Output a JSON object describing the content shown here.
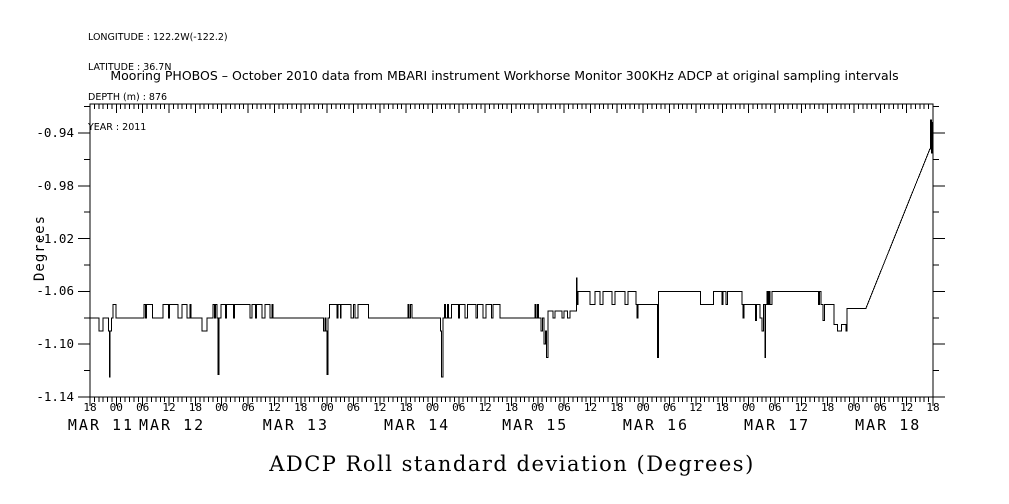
{
  "meta": {
    "longitude": "LONGITUDE : 122.2W(-122.2)",
    "latitude": "LATITUDE : 36.7N",
    "depth": "DEPTH (m) : 876",
    "year": "YEAR : 2011"
  },
  "title": "Mooring PHOBOS – October 2010 data from MBARI instrument Workhorse Monitor 300KHz ADCP at original sampling intervals",
  "footer_title": "ADCP Roll standard deviation (Degrees)",
  "colors": {
    "line": "#000000",
    "background": "#ffffff",
    "text": "#000000"
  },
  "chart_data": {
    "type": "line",
    "title": "Mooring PHOBOS – October 2010 data from MBARI instrument Workhorse Monitor 300KHz ADCP at original sampling intervals",
    "xlabel": "",
    "ylabel": "Degrees",
    "grid": false,
    "legend": "none",
    "ylim": [
      -1.14,
      -0.918
    ],
    "y_axis": {
      "major_values": [
        -0.94,
        -0.98,
        -1.02,
        -1.06,
        -1.1,
        -1.14
      ],
      "major_labels": [
        "-0.94",
        "-0.98",
        "-1.02",
        "-1.06",
        "-1.10",
        "-1.14"
      ],
      "minor_values": [
        -0.92,
        -0.96,
        -1.0,
        -1.04,
        -1.08,
        -1.12
      ]
    },
    "x_axis": {
      "start": "MAR 10 18:00",
      "end": "MAR 18 18:00",
      "total_hours": 192,
      "minor_step_hours": 1,
      "major_step_hours": 6,
      "hour_labels": [
        "18",
        "00",
        "06",
        "12",
        "18",
        "00",
        "06",
        "12",
        "18",
        "00",
        "06",
        "12",
        "18",
        "00",
        "06",
        "12",
        "18",
        "00",
        "06",
        "12",
        "18",
        "00",
        "06",
        "12",
        "18",
        "00",
        "06",
        "12",
        "18",
        "00",
        "06",
        "12",
        "18"
      ],
      "date_labels": [
        {
          "label": "MAR 11",
          "t": 2.5
        },
        {
          "label": "MAR 12",
          "t": 18.7
        },
        {
          "label": "MAR 13",
          "t": 46.9
        },
        {
          "label": "MAR 14",
          "t": 74.5
        },
        {
          "label": "MAR 15",
          "t": 101.4
        },
        {
          "label": "MAR 16",
          "t": 128.9
        },
        {
          "label": "MAR 17",
          "t": 156.5
        },
        {
          "label": "MAR 18",
          "t": 181.8
        }
      ]
    },
    "series": [
      {
        "name": "ADCP Roll standard deviation",
        "units": "Degrees",
        "interpolation": "step (hold), 'l' = linear segment",
        "points": [
          [
            0,
            -1.08
          ],
          [
            2.0,
            -1.09
          ],
          [
            3.0,
            -1.08
          ],
          [
            4.2,
            -1.09
          ],
          [
            4.4,
            -1.125
          ],
          [
            4.6,
            -1.09
          ],
          [
            4.9,
            -1.08
          ],
          [
            5.2,
            -1.07
          ],
          [
            5.9,
            -1.08
          ],
          [
            12.3,
            -1.07
          ],
          [
            12.6,
            -1.08
          ],
          [
            12.9,
            -1.07
          ],
          [
            14.2,
            -1.08
          ],
          [
            16.6,
            -1.07
          ],
          [
            17.9,
            -1.08
          ],
          [
            18.1,
            -1.07
          ],
          [
            20.0,
            -1.08
          ],
          [
            21.0,
            -1.07
          ],
          [
            22.1,
            -1.08
          ],
          [
            22.8,
            -1.07
          ],
          [
            23.0,
            -1.08
          ],
          [
            25.5,
            -1.09
          ],
          [
            26.6,
            -1.08
          ],
          [
            28.0,
            -1.07
          ],
          [
            28.3,
            -1.08
          ],
          [
            28.6,
            -1.07
          ],
          [
            28.9,
            -1.08
          ],
          [
            29.2,
            -1.123
          ],
          [
            29.4,
            -1.08
          ],
          [
            29.8,
            -1.07
          ],
          [
            30.9,
            -1.08
          ],
          [
            31.1,
            -1.07
          ],
          [
            32.7,
            -1.08
          ],
          [
            32.9,
            -1.07
          ],
          [
            36.4,
            -1.08
          ],
          [
            36.9,
            -1.07
          ],
          [
            37.7,
            -1.08
          ],
          [
            37.9,
            -1.07
          ],
          [
            39.2,
            -1.08
          ],
          [
            39.9,
            -1.07
          ],
          [
            41.0,
            -1.08
          ],
          [
            41.5,
            -1.07
          ],
          [
            41.7,
            -1.08
          ],
          [
            53.2,
            -1.09
          ],
          [
            53.5,
            -1.08
          ],
          [
            53.8,
            -1.09
          ],
          [
            54.0,
            -1.123
          ],
          [
            54.2,
            -1.08
          ],
          [
            54.5,
            -1.07
          ],
          [
            56.3,
            -1.08
          ],
          [
            56.5,
            -1.07
          ],
          [
            57.0,
            -1.08
          ],
          [
            57.2,
            -1.07
          ],
          [
            59.4,
            -1.08
          ],
          [
            60.0,
            -1.07
          ],
          [
            60.4,
            -1.08
          ],
          [
            61.0,
            -1.07
          ],
          [
            63.4,
            -1.08
          ],
          [
            72.4,
            -1.07
          ],
          [
            72.6,
            -1.08
          ],
          [
            73.0,
            -1.07
          ],
          [
            73.3,
            -1.08
          ],
          [
            79.8,
            -1.09
          ],
          [
            80.1,
            -1.125
          ],
          [
            80.4,
            -1.08
          ],
          [
            80.7,
            -1.07
          ],
          [
            81.0,
            -1.08
          ],
          [
            81.4,
            -1.07
          ],
          [
            81.7,
            -1.08
          ],
          [
            82.3,
            -1.07
          ],
          [
            83.9,
            -1.08
          ],
          [
            84.2,
            -1.07
          ],
          [
            85.4,
            -1.08
          ],
          [
            86.0,
            -1.07
          ],
          [
            87.9,
            -1.08
          ],
          [
            88.3,
            -1.07
          ],
          [
            89.5,
            -1.08
          ],
          [
            90.2,
            -1.07
          ],
          [
            91.4,
            -1.08
          ],
          [
            91.8,
            -1.07
          ],
          [
            93.4,
            -1.08
          ],
          [
            101.4,
            -1.07
          ],
          [
            101.6,
            -1.08
          ],
          [
            101.9,
            -1.07
          ],
          [
            102.1,
            -1.08
          ],
          [
            102.7,
            -1.09
          ],
          [
            103.1,
            -1.08
          ],
          [
            103.4,
            -1.1
          ],
          [
            103.7,
            -1.09
          ],
          [
            104.0,
            -1.11
          ],
          [
            104.3,
            -1.075
          ],
          [
            105.4,
            -1.08
          ],
          [
            105.9,
            -1.075
          ],
          [
            107.5,
            -1.08
          ],
          [
            108.0,
            -1.075
          ],
          [
            108.8,
            -1.08
          ],
          [
            109.3,
            -1.075
          ],
          [
            110.8,
            -1.05
          ],
          [
            110.95,
            -1.07
          ],
          [
            111.2,
            -1.06
          ],
          [
            113.9,
            -1.07
          ],
          [
            115.0,
            -1.06
          ],
          [
            116.2,
            -1.07
          ],
          [
            116.8,
            -1.06
          ],
          [
            118.9,
            -1.07
          ],
          [
            119.6,
            -1.06
          ],
          [
            121.9,
            -1.07
          ],
          [
            122.5,
            -1.06
          ],
          [
            124.4,
            -1.07
          ],
          [
            124.6,
            -1.08
          ],
          [
            124.8,
            -1.07
          ],
          [
            129.3,
            -1.11
          ],
          [
            129.5,
            -1.06
          ],
          [
            139.0,
            -1.07
          ],
          [
            142.0,
            -1.06
          ],
          [
            143.9,
            -1.07
          ],
          [
            144.2,
            -1.06
          ],
          [
            144.9,
            -1.07
          ],
          [
            145.2,
            -1.06
          ],
          [
            148.5,
            -1.07
          ],
          [
            148.7,
            -1.08
          ],
          [
            148.9,
            -1.07
          ],
          [
            151.6,
            -1.082
          ],
          [
            151.8,
            -1.07
          ],
          [
            152.6,
            -1.08
          ],
          [
            153.0,
            -1.09
          ],
          [
            153.4,
            -1.07
          ],
          [
            153.7,
            -1.11
          ],
          [
            153.9,
            -1.07
          ],
          [
            154.2,
            -1.06
          ],
          [
            154.4,
            -1.07
          ],
          [
            154.7,
            -1.06
          ],
          [
            154.9,
            -1.07
          ],
          [
            155.3,
            -1.06
          ],
          [
            165.9,
            -1.07
          ],
          [
            166.2,
            -1.06
          ],
          [
            166.5,
            -1.07
          ],
          [
            166.9,
            -1.082
          ],
          [
            167.3,
            -1.07
          ],
          [
            169.4,
            -1.085
          ],
          [
            170.2,
            -1.09
          ],
          [
            171.2,
            -1.085
          ],
          [
            172.2,
            -1.09
          ],
          [
            172.4,
            -1.073
          ],
          [
            176.7,
            -1.073
          ],
          [
            191.3,
            -0.952,
            "l"
          ],
          [
            191.45,
            -0.93
          ],
          [
            191.65,
            -0.955
          ],
          [
            191.8,
            -0.932
          ]
        ]
      }
    ]
  }
}
